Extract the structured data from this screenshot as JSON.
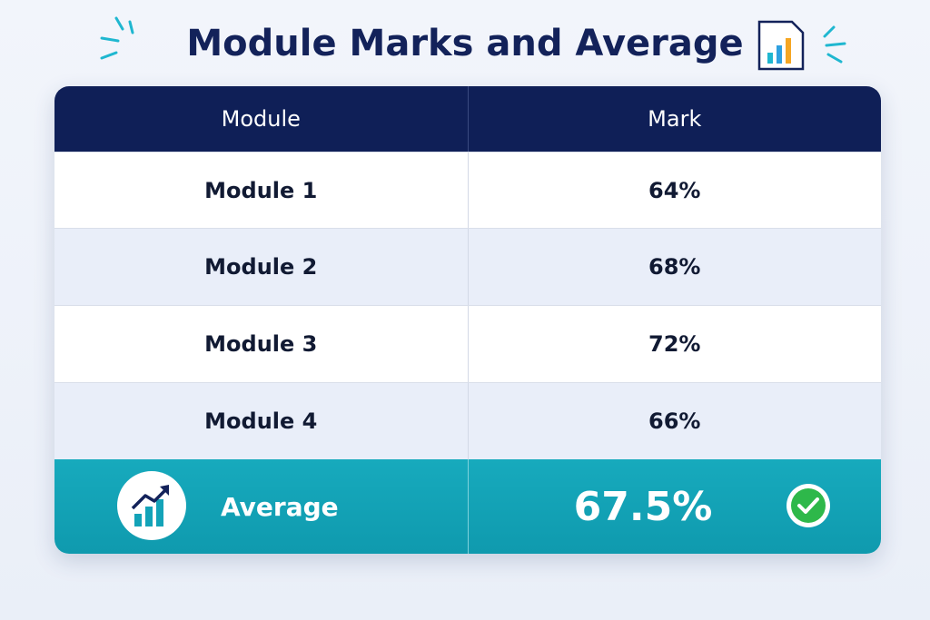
{
  "title": "Module Marks and Average",
  "table": {
    "header": [
      "Module",
      "Mark"
    ],
    "rows": [
      [
        "Module 1",
        "64%"
      ],
      [
        "Module 2",
        "68%"
      ],
      [
        "Module 3",
        "72%"
      ],
      [
        "Module 4",
        "66%"
      ]
    ],
    "footer": [
      "Average",
      "67.5%"
    ]
  }
}
